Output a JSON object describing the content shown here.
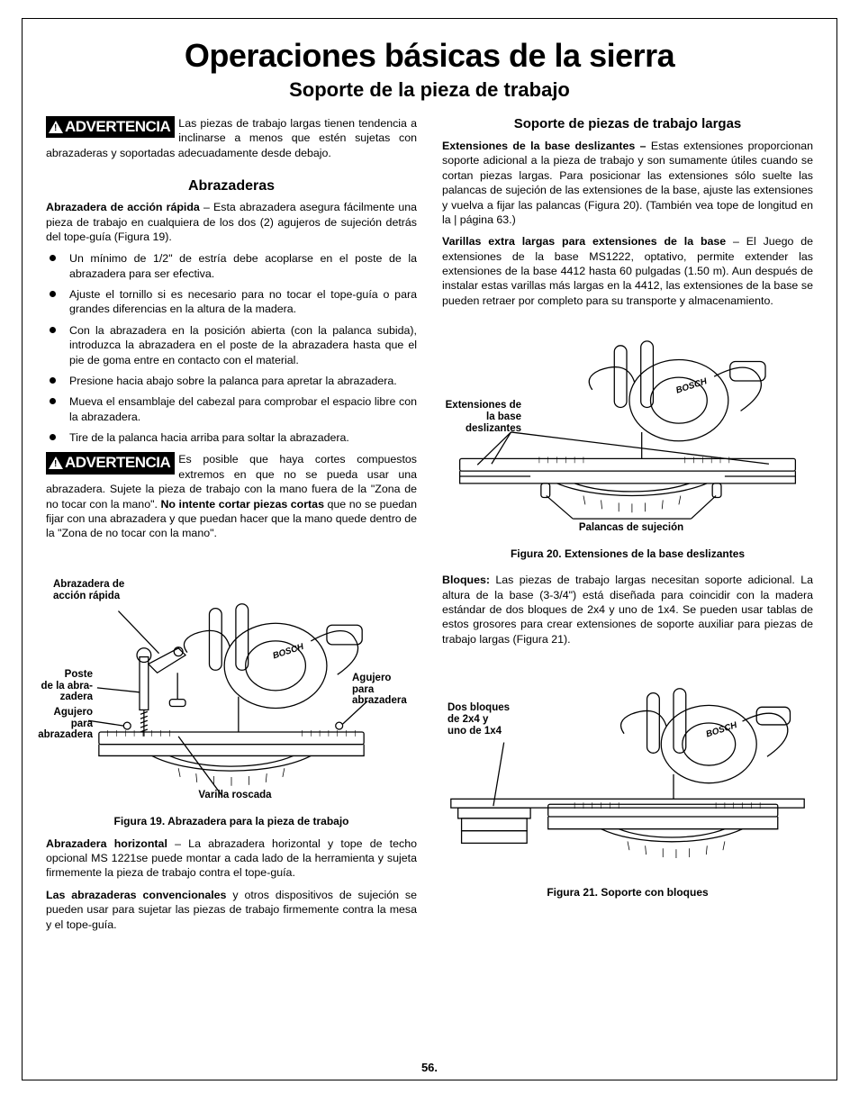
{
  "page": {
    "number": "56.",
    "title": "Operaciones básicas de la sierra",
    "subtitle": "Soporte de la pieza de trabajo"
  },
  "warnLabel": "ADVERTENCIA",
  "left": {
    "warn1": "Las piezas de trabajo largas tienen ten­dencia a inclinarse a menos que estén sujetas con abrazaderas y soportadas adecuadamente desde debajo.",
    "h3": "Abrazaderas",
    "p1a": "Abrazadera de acción rápida",
    "p1b": " – Esta abrazadera asegura fácilmente una pieza de trabajo en cualquiera de los dos (2) agujeros de sujeción detrás del tope-guía (Figura 19).",
    "bullets": [
      "Un mínimo de 1/2\" de estría debe acoplarse en el poste de la abrazadera para ser efectiva.",
      "Ajuste el tornillo si es necesario para no tocar el tope-guía o para grandes diferencias en la altura de la madera.",
      "Con la abrazadera en la posición abierta (con la palanca subida), introduzca la abrazadera en el poste de la abrazadera hasta que el pie de goma entre en contacto con el material.",
      "Presione hacia abajo sobre la palanca para apretar la abrazadera.",
      "Mueva el ensamblaje del cabezal para comprobar el espacio libre con la abrazadera.",
      "Tire de la palanca hacia arriba para soltar la abrazadera."
    ],
    "warn2a": "Es posible que haya cortes compuestos extremos en que no se pueda usar una abrazadera. Sujete la pieza de trabajo con la mano fuera de la \"Zona de no tocar con la mano\". ",
    "warn2b": "No intente cortar piezas cortas",
    "warn2c": " que no se puedan fijar con una abrazadera y que puedan hacer que la mano quede dentro de la \"Zona de no tocar con la mano\".",
    "fig19": {
      "caption": "Figura 19. Abrazadera para la pieza de trabajo",
      "callouts": {
        "c1": "Abrazadera de\nacción rápida",
        "c2": "Poste\nde la abra-\nzadera",
        "c3": "Agujero\npara\nabrazadera",
        "c4": "Agujero\npara\nabrazadera",
        "c5": "Varilla roscada"
      }
    },
    "p2a": "Abrazadera horizontal",
    "p2b": " – La abrazadera horizontal y tope de techo opcional MS 1221se puede montar a cada lado de la herramienta y sujeta firmemente la pieza de trabajo contra el tope-guía.",
    "p3a": "Las abrazaderas convencionales",
    "p3b": " y otros dispositivos de sujeción se pueden usar para sujetar las piezas de trabajo firmemente contra la mesa y el tope-guía."
  },
  "right": {
    "h4": "Soporte de piezas de trabajo largas",
    "p1a": "Extensiones de la base deslizantes –",
    "p1b": " Estas extensiones proporcionan soporte adicional a la pieza de trabajo y son sumamente útiles cuando se cortan piezas largas. Para posicionar las extensiones sólo suelte las palancas de sujeción de las extensiones de la base, ajuste las extensiones y vuelva a fijar las palancas (Figura 20). (También vea tope de longitud en la | página 63.)",
    "p2a": "Varillas extra largas para extensiones de la base",
    "p2b": " – El Juego de extensiones de la base MS1222, optativo, permite extender las extensiones de la base 4412 hasta 60 pulgadas (1.50 m). Aun después de instalar estas varillas más largas en la 4412, las extensiones de la base se pueden retraer por completo para su transporte y almacenamiento.",
    "fig20": {
      "caption": "Figura 20. Extensiones de la base deslizantes",
      "callouts": {
        "c1": "Extensiones de\nla base\ndeslizantes",
        "c2": "Palancas de sujeción"
      }
    },
    "p3a": "Bloques:",
    "p3b": " Las piezas de trabajo largas necesitan soporte adicional. La altura de la base (3-3/4\") está diseñada para coincidir con la madera estándar de dos bloques de 2x4 y uno de 1x4. Se pueden usar tablas de estos grosores para crear extensiones de soporte auxiliar para piezas de trabajo largas (Figura 21).",
    "fig21": {
      "caption": "Figura 21. Soporte con bloques",
      "callouts": {
        "c1": "Dos bloques\nde 2x4 y\nuno de 1x4"
      }
    }
  }
}
